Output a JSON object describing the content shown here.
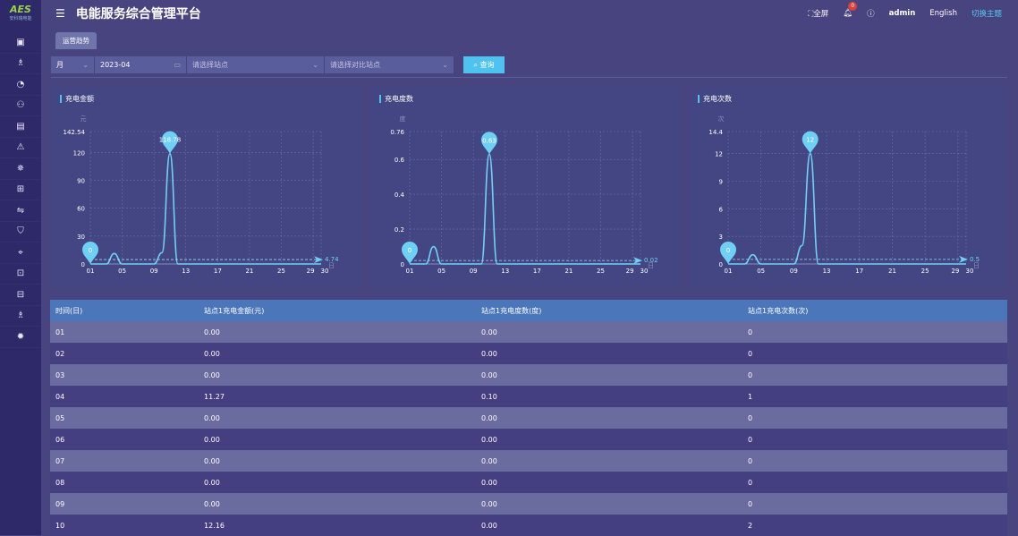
{
  "sidebar": {
    "logo_mark": "AES",
    "logo_text": "安科瑞电能",
    "icons": [
      "monitor-icon",
      "org-icon",
      "pie-chart-icon",
      "users-icon",
      "document-icon",
      "warning-icon",
      "network-icon",
      "gift-icon",
      "transfer-icon",
      "shield-icon",
      "plug-icon",
      "meter-icon",
      "storage-icon",
      "org-icon",
      "settings-icon"
    ],
    "glyphs": [
      "▣",
      "♗",
      "◔",
      "⚇",
      "▤",
      "⚠",
      "✵",
      "⊞",
      "⇋",
      "⛉",
      "⌖",
      "⊡",
      "⊟",
      "♗",
      "✹"
    ]
  },
  "header": {
    "title": "电能服务综合管理平台",
    "fullscreen": "全屏",
    "notifications": "0",
    "user": "admin",
    "language": "English",
    "switch_theme": "切换主题"
  },
  "tabs": [
    {
      "label": "运营趋势"
    }
  ],
  "filters": {
    "period": "月",
    "date": "2023-04",
    "station_placeholder": "请选择站点",
    "compare_placeholder": "请选择对比站点",
    "query": "查询"
  },
  "colors": {
    "accent": "#4fc3ef",
    "line": "#6fd0f5",
    "table_header": "#4b77ba"
  },
  "chart_data": [
    {
      "type": "line",
      "title": "充电金额",
      "ylabel": "元",
      "xlabel": "日",
      "ylim": [
        0,
        142.54
      ],
      "yticks": [
        0,
        30,
        60,
        90,
        120,
        142.54
      ],
      "xticks": [
        "01",
        "05",
        "09",
        "13",
        "17",
        "21",
        "25",
        "29",
        "30"
      ],
      "x": [
        1,
        2,
        3,
        4,
        5,
        6,
        7,
        8,
        9,
        10,
        11,
        12,
        13,
        14,
        15,
        16,
        17,
        18,
        19,
        20,
        21,
        22,
        23,
        24,
        25,
        26,
        27,
        28,
        29,
        30
      ],
      "values": [
        0,
        0,
        0,
        11.27,
        0,
        0,
        0,
        0,
        0,
        12.16,
        118.78,
        0,
        0,
        0,
        0,
        0,
        0,
        0,
        0,
        0,
        0,
        0,
        0,
        0,
        0,
        0,
        0,
        0,
        0,
        0
      ],
      "min_label": "0",
      "max_label": "118.78",
      "average": 4.74
    },
    {
      "type": "line",
      "title": "充电度数",
      "ylabel": "度",
      "xlabel": "日",
      "ylim": [
        0,
        0.76
      ],
      "yticks": [
        0,
        0.2,
        0.4,
        0.6,
        0.76
      ],
      "xticks": [
        "01",
        "05",
        "09",
        "13",
        "17",
        "21",
        "25",
        "29",
        "30"
      ],
      "x": [
        1,
        2,
        3,
        4,
        5,
        6,
        7,
        8,
        9,
        10,
        11,
        12,
        13,
        14,
        15,
        16,
        17,
        18,
        19,
        20,
        21,
        22,
        23,
        24,
        25,
        26,
        27,
        28,
        29,
        30
      ],
      "values": [
        0,
        0,
        0,
        0.1,
        0,
        0,
        0,
        0,
        0,
        0,
        0.63,
        0,
        0,
        0,
        0,
        0,
        0,
        0,
        0,
        0,
        0,
        0,
        0,
        0,
        0,
        0,
        0,
        0,
        0,
        0
      ],
      "min_label": "0",
      "max_label": "0.63",
      "average": 0.02
    },
    {
      "type": "line",
      "title": "充电次数",
      "ylabel": "次",
      "xlabel": "日",
      "ylim": [
        0,
        14.4
      ],
      "yticks": [
        0,
        3,
        6,
        9,
        12,
        14.4
      ],
      "xticks": [
        "01",
        "05",
        "09",
        "13",
        "17",
        "21",
        "25",
        "29",
        "30"
      ],
      "x": [
        1,
        2,
        3,
        4,
        5,
        6,
        7,
        8,
        9,
        10,
        11,
        12,
        13,
        14,
        15,
        16,
        17,
        18,
        19,
        20,
        21,
        22,
        23,
        24,
        25,
        26,
        27,
        28,
        29,
        30
      ],
      "values": [
        0,
        0,
        0,
        1,
        0,
        0,
        0,
        0,
        0,
        2,
        12,
        0,
        0,
        0,
        0,
        0,
        0,
        0,
        0,
        0,
        0,
        0,
        0,
        0,
        0,
        0,
        0,
        0,
        0,
        0
      ],
      "min_label": "0",
      "max_label": "12",
      "average": 0.5
    }
  ],
  "table": {
    "headers": [
      "时间(日)",
      "站点1充电金额(元)",
      "站点1充电度数(度)",
      "站点1充电次数(次)"
    ],
    "rows": [
      [
        "01",
        "0.00",
        "0.00",
        "0"
      ],
      [
        "02",
        "0.00",
        "0.00",
        "0"
      ],
      [
        "03",
        "0.00",
        "0.00",
        "0"
      ],
      [
        "04",
        "11.27",
        "0.10",
        "1"
      ],
      [
        "05",
        "0.00",
        "0.00",
        "0"
      ],
      [
        "06",
        "0.00",
        "0.00",
        "0"
      ],
      [
        "07",
        "0.00",
        "0.00",
        "0"
      ],
      [
        "08",
        "0.00",
        "0.00",
        "0"
      ],
      [
        "09",
        "0.00",
        "0.00",
        "0"
      ],
      [
        "10",
        "12.16",
        "0.00",
        "2"
      ]
    ]
  }
}
